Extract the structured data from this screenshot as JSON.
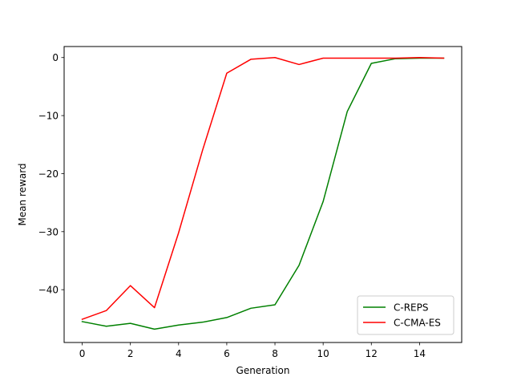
{
  "chart_data": {
    "type": "line",
    "title": "",
    "xlabel": "Generation",
    "ylabel": "Mean reward",
    "xlim": [
      -0.75,
      15.75
    ],
    "ylim": [
      -49.1,
      1.9
    ],
    "xticks": [
      0,
      2,
      4,
      6,
      8,
      10,
      12,
      14
    ],
    "yticks": [
      0,
      -10,
      -20,
      -30,
      -40
    ],
    "xtick_labels": [
      "0",
      "2",
      "4",
      "6",
      "8",
      "10",
      "12",
      "14"
    ],
    "ytick_labels": [
      "0",
      "−10",
      "−20",
      "−30",
      "−40"
    ],
    "grid": false,
    "legend_position": "lower-right",
    "x": [
      0,
      1,
      2,
      3,
      4,
      5,
      6,
      7,
      8,
      9,
      10,
      11,
      12,
      13,
      14,
      15
    ],
    "series": [
      {
        "name": "C-REPS",
        "color": "#008000",
        "values": [
          -45.5,
          -46.3,
          -45.8,
          -46.8,
          -46.1,
          -45.6,
          -44.8,
          -43.2,
          -42.6,
          -35.8,
          -24.8,
          -9.3,
          -1.0,
          -0.2,
          -0.1,
          -0.1
        ]
      },
      {
        "name": "C-CMA-ES",
        "color": "#ff0000",
        "values": [
          -45.1,
          -43.6,
          -39.3,
          -43.1,
          -30.2,
          -15.9,
          -2.7,
          -0.3,
          0.0,
          -1.2,
          -0.1,
          -0.1,
          -0.1,
          -0.1,
          0.0,
          -0.1
        ]
      }
    ]
  }
}
